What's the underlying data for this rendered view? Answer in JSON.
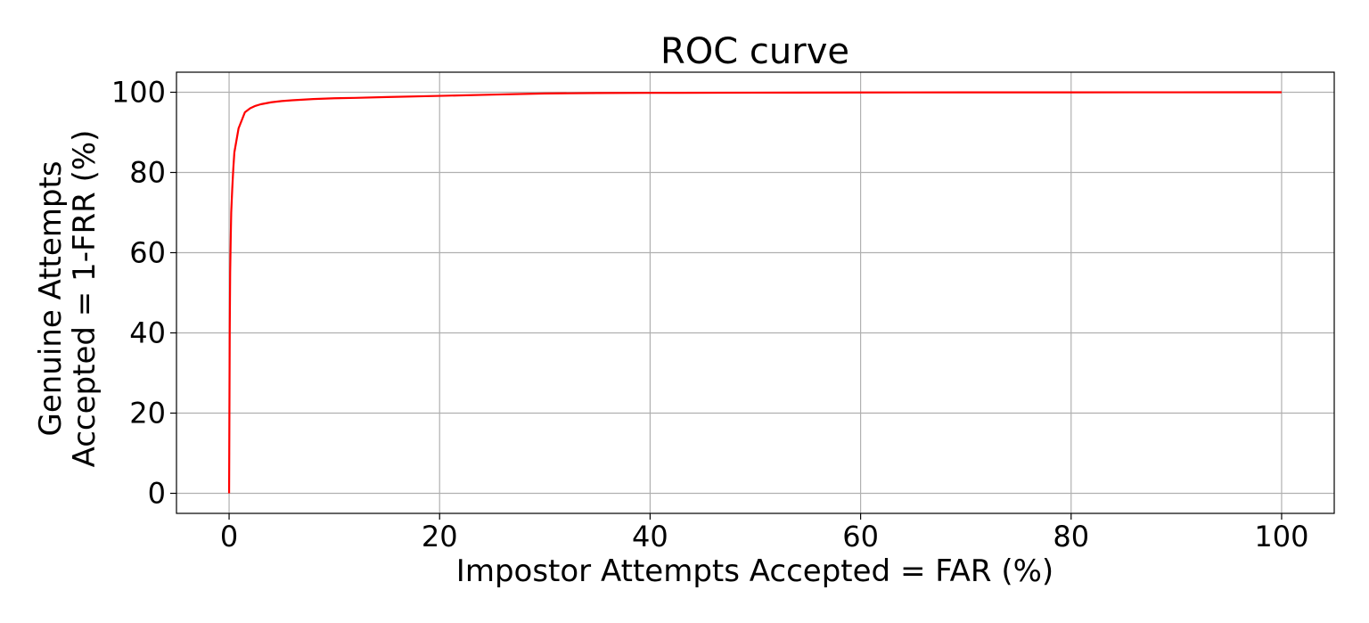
{
  "chart_data": {
    "type": "line",
    "title": "ROC curve",
    "xlabel": "Impostor Attempts Accepted = FAR (%)",
    "ylabel_lines": [
      "Genuine Attempts",
      "Accepted = 1-FRR (%)"
    ],
    "xlim": [
      -5,
      105
    ],
    "ylim": [
      -5,
      105
    ],
    "xticks": [
      0,
      20,
      40,
      60,
      80,
      100
    ],
    "yticks": [
      0,
      20,
      40,
      60,
      80,
      100
    ],
    "grid": true,
    "series": [
      {
        "color": "#ff0000",
        "points": [
          [
            0,
            0
          ],
          [
            0.03,
            20
          ],
          [
            0.06,
            40
          ],
          [
            0.1,
            55
          ],
          [
            0.15,
            63
          ],
          [
            0.2,
            70
          ],
          [
            0.3,
            76
          ],
          [
            0.4,
            81
          ],
          [
            0.5,
            85
          ],
          [
            0.7,
            88
          ],
          [
            0.9,
            91
          ],
          [
            1.2,
            93
          ],
          [
            1.5,
            95
          ],
          [
            2,
            96
          ],
          [
            2.5,
            96.6
          ],
          [
            3,
            97
          ],
          [
            4,
            97.5
          ],
          [
            5,
            97.8
          ],
          [
            6,
            98
          ],
          [
            8,
            98.3
          ],
          [
            10,
            98.5
          ],
          [
            12,
            98.6
          ],
          [
            15,
            98.8
          ],
          [
            20,
            99.1
          ],
          [
            25,
            99.4
          ],
          [
            30,
            99.7
          ],
          [
            35,
            99.8
          ],
          [
            40,
            99.85
          ],
          [
            50,
            99.9
          ],
          [
            60,
            99.95
          ],
          [
            70,
            99.97
          ],
          [
            80,
            99.98
          ],
          [
            90,
            99.99
          ],
          [
            100,
            100
          ]
        ]
      }
    ]
  }
}
